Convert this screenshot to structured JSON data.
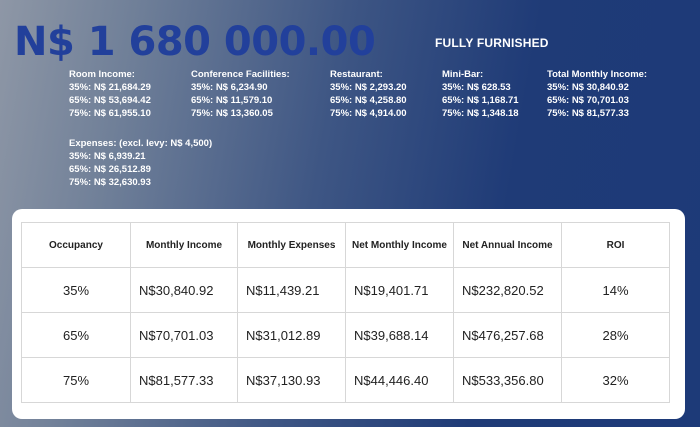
{
  "header": {
    "price": "N$ 1 680 000.00",
    "tagline": "FULLY FURNISHED"
  },
  "income": [
    {
      "title": "Room Income:",
      "lines": [
        "35%: N$ 21,684.29",
        "65%: N$ 53,694.42",
        "75%: N$ 61,955.10"
      ]
    },
    {
      "title": "Conference Facilities:",
      "lines": [
        "35%: N$ 6,234.90",
        "65%: N$ 11,579.10",
        "75%: N$ 13,360.05"
      ]
    },
    {
      "title": "Restaurant:",
      "lines": [
        "35%: N$ 2,293.20",
        "65%: N$ 4,258.80",
        "75%: N$ 4,914.00"
      ]
    },
    {
      "title": "Mini-Bar:",
      "lines": [
        "35%: N$ 628.53",
        "65%: N$ 1,168.71",
        "75%: N$ 1,348.18"
      ]
    },
    {
      "title": "Total Monthly Income:",
      "lines": [
        "35%: N$ 30,840.92",
        "65%: N$ 70,701.03",
        "75%: N$ 81,577.33"
      ]
    }
  ],
  "expenses": {
    "title": "Expenses: (excl. levy: N$ 4,500)",
    "lines": [
      "35%: N$ 6,939.21",
      "65%: N$ 26,512.89",
      "75%: N$ 32,630.93"
    ]
  },
  "table": {
    "headers": [
      "Occupancy",
      "Monthly Income",
      "Monthly Expenses",
      "Net Monthly Income",
      "Net Annual Income",
      "ROI"
    ],
    "rows": [
      [
        "35%",
        "N$30,840.92",
        "N$11,439.21",
        "N$19,401.71",
        "N$232,820.52",
        "14%"
      ],
      [
        "65%",
        "N$70,701.03",
        "N$31,012.89",
        "N$39,688.14",
        "N$476,257.68",
        "28%"
      ],
      [
        "75%",
        "N$81,577.33",
        "N$37,130.93",
        "N$44,446.40",
        "N$533,356.80",
        "32%"
      ]
    ]
  }
}
